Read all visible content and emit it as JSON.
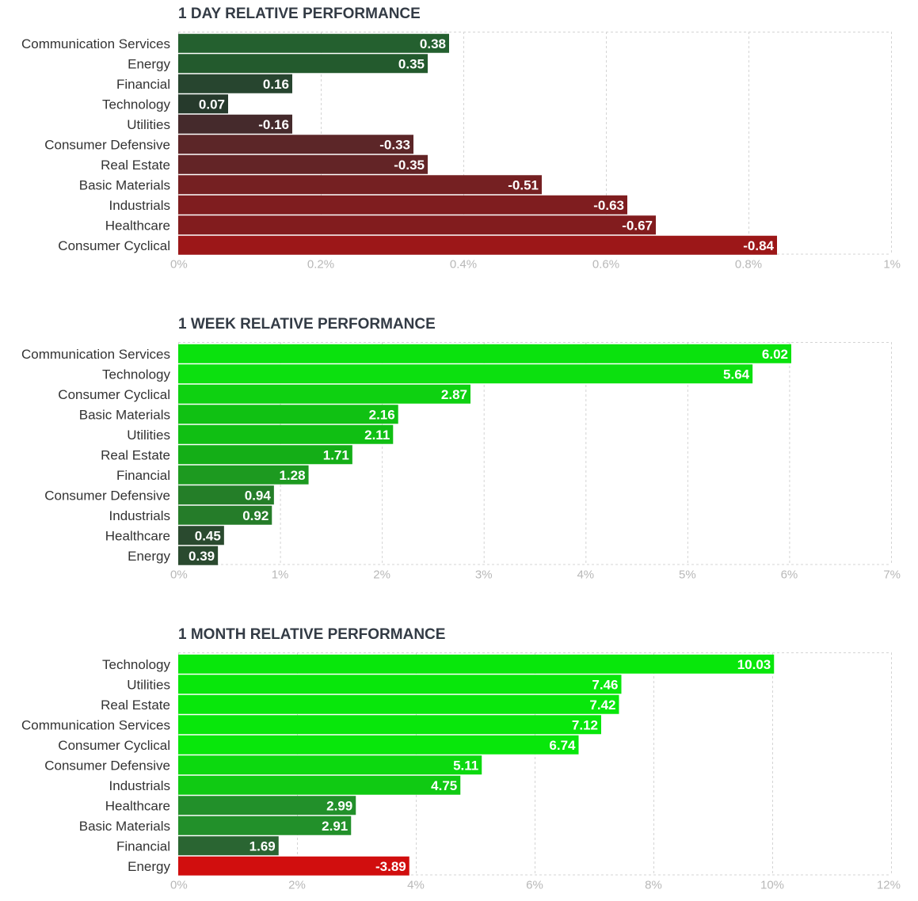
{
  "chart_data": [
    {
      "type": "bar",
      "orientation": "horizontal",
      "title": "1 DAY RELATIVE PERFORMANCE",
      "categories": [
        "Communication Services",
        "Energy",
        "Financial",
        "Technology",
        "Utilities",
        "Consumer Defensive",
        "Real Estate",
        "Basic Materials",
        "Industrials",
        "Healthcare",
        "Consumer Cyclical"
      ],
      "values": [
        0.38,
        0.35,
        0.16,
        0.07,
        -0.16,
        -0.33,
        -0.35,
        -0.51,
        -0.63,
        -0.67,
        -0.84
      ],
      "value_labels": [
        "0.38",
        "0.35",
        "0.16",
        "0.07",
        "-0.16",
        "-0.33",
        "-0.35",
        "-0.51",
        "-0.63",
        "-0.67",
        "-0.84"
      ],
      "bar_colors": [
        "#24602f",
        "#235a2d",
        "#27452f",
        "#263a2c",
        "#452a2c",
        "#5c2628",
        "#632426",
        "#752022",
        "#7f1d1f",
        "#821c1e",
        "#9c1718"
      ],
      "xlim": [
        0,
        1
      ],
      "tick_labels": [
        "0%",
        "0.2%",
        "0.4%",
        "0.6%",
        "0.8%",
        "1%"
      ],
      "xlabel": "",
      "ylabel": ""
    },
    {
      "type": "bar",
      "orientation": "horizontal",
      "title": "1 WEEK RELATIVE PERFORMANCE",
      "categories": [
        "Communication Services",
        "Technology",
        "Consumer Cyclical",
        "Basic Materials",
        "Utilities",
        "Real Estate",
        "Financial",
        "Consumer Defensive",
        "Industrials",
        "Healthcare",
        "Energy"
      ],
      "values": [
        6.02,
        5.64,
        2.87,
        2.16,
        2.11,
        1.71,
        1.28,
        0.94,
        0.92,
        0.45,
        0.39
      ],
      "value_labels": [
        "6.02",
        "5.64",
        "2.87",
        "2.16",
        "2.11",
        "1.71",
        "1.28",
        "0.94",
        "0.92",
        "0.45",
        "0.39"
      ],
      "bar_colors": [
        "#0ae20d",
        "#0ce00f",
        "#0ed111",
        "#10c113",
        "#10bf13",
        "#14ae17",
        "#1d9a20",
        "#247e28",
        "#257c29",
        "#2a4a2f",
        "#2a4a2f"
      ],
      "xlim": [
        0,
        7
      ],
      "tick_labels": [
        "0%",
        "1%",
        "2%",
        "3%",
        "4%",
        "5%",
        "6%",
        "7%"
      ],
      "xlabel": "",
      "ylabel": ""
    },
    {
      "type": "bar",
      "orientation": "horizontal",
      "title": "1 MONTH RELATIVE PERFORMANCE",
      "categories": [
        "Technology",
        "Utilities",
        "Real Estate",
        "Communication Services",
        "Consumer Cyclical",
        "Consumer Defensive",
        "Industrials",
        "Healthcare",
        "Basic Materials",
        "Financial",
        "Energy"
      ],
      "values": [
        10.03,
        7.46,
        7.42,
        7.12,
        6.74,
        5.11,
        4.75,
        2.99,
        2.91,
        1.69,
        -3.89
      ],
      "value_labels": [
        "10.03",
        "7.46",
        "7.42",
        "7.12",
        "6.74",
        "5.11",
        "4.75",
        "2.99",
        "2.91",
        "1.69",
        "-3.89"
      ],
      "bar_colors": [
        "#08e70b",
        "#08e70b",
        "#08e70b",
        "#08e70b",
        "#08e70b",
        "#0cd90f",
        "#10ca13",
        "#22902a",
        "#22902a",
        "#2a6532",
        "#d10e0e"
      ],
      "xlim": [
        0,
        12
      ],
      "tick_labels": [
        "0%",
        "2%",
        "4%",
        "6%",
        "8%",
        "10%",
        "12%"
      ],
      "xlabel": "",
      "ylabel": ""
    }
  ]
}
